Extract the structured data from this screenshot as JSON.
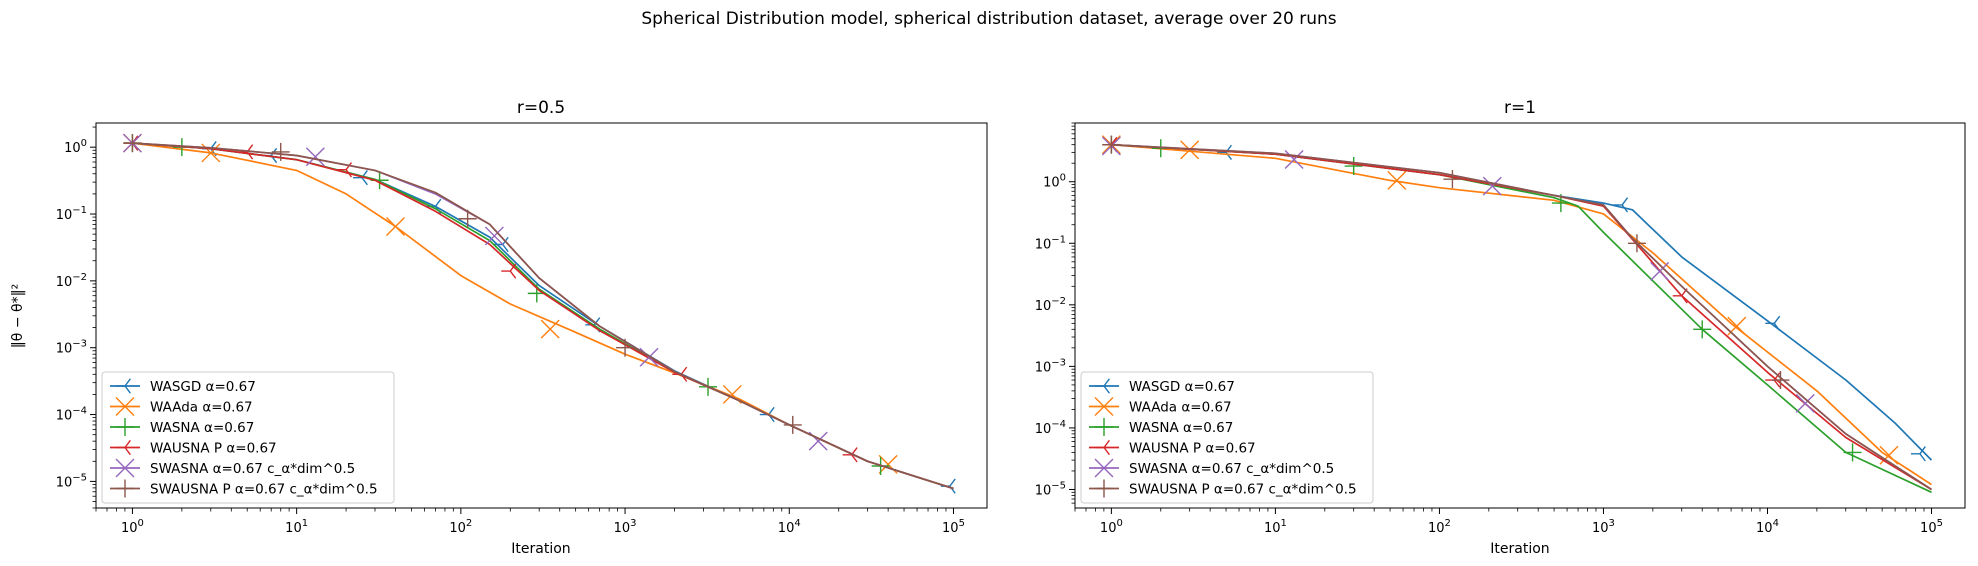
{
  "figure": {
    "suptitle": "Spherical Distribution model, spherical distribution dataset, average over 20 runs"
  },
  "colors": {
    "WASGD": "#1f77b4",
    "WAAda": "#ff7f0e",
    "WASNA": "#2ca02c",
    "WAUSNA": "#d62728",
    "SWASNA": "#9467bd",
    "SWAUSNA": "#8c564b"
  },
  "chart_data": [
    {
      "type": "line",
      "title": "r=0.5",
      "xlabel": "Iteration",
      "ylabel": "‖θ − θ*‖²",
      "xscale": "log",
      "yscale": "log",
      "xlim": [
        0.6,
        160000
      ],
      "ylim": [
        4e-06,
        2.3
      ],
      "xticks": [
        {
          "v": 1,
          "b": "10",
          "e": "0"
        },
        {
          "v": 10,
          "b": "10",
          "e": "1"
        },
        {
          "v": 100,
          "b": "10",
          "e": "2"
        },
        {
          "v": 1000,
          "b": "10",
          "e": "3"
        },
        {
          "v": 10000,
          "b": "10",
          "e": "4"
        },
        {
          "v": 100000,
          "b": "10",
          "e": "5"
        }
      ],
      "yticks": [
        {
          "v": 1e-05,
          "b": "10",
          "e": "−5"
        },
        {
          "v": 0.0001,
          "b": "10",
          "e": "−4"
        },
        {
          "v": 0.001,
          "b": "10",
          "e": "−3"
        },
        {
          "v": 0.01,
          "b": "10",
          "e": "−2"
        },
        {
          "v": 0.1,
          "b": "10",
          "e": "−1"
        },
        {
          "v": 1,
          "b": "10",
          "e": "0"
        }
      ],
      "legend_loc": "lower left",
      "series": [
        {
          "name": "WASGD α=0.67",
          "key": "WASGD",
          "marker": "tri_left",
          "x": [
            1,
            3,
            10,
            30,
            70,
            150,
            300,
            700,
            2000,
            5000,
            10000,
            30000,
            100000
          ],
          "y": [
            1.15,
            0.95,
            0.65,
            0.33,
            0.13,
            0.045,
            0.0085,
            0.0021,
            0.00045,
            0.00016,
            7e-05,
            2e-05,
            7.8e-06
          ],
          "mx": [
            1,
            3,
            7,
            25,
            70,
            180,
            650,
            7500,
            95000
          ],
          "my": [
            1.15,
            0.95,
            0.75,
            0.35,
            0.13,
            0.035,
            0.0022,
            0.0001,
            8.5e-06
          ]
        },
        {
          "name": "WAAda α=0.67",
          "key": "WAAda",
          "marker": "x",
          "x": [
            1,
            3,
            10,
            20,
            40,
            100,
            200,
            500,
            1000,
            2000,
            5000,
            10000,
            30000,
            100000
          ],
          "y": [
            1.15,
            0.82,
            0.45,
            0.2,
            0.065,
            0.012,
            0.0045,
            0.0017,
            0.0008,
            0.00042,
            0.00017,
            7e-05,
            2e-05,
            7.8e-06
          ],
          "mx": [
            1,
            3,
            40,
            350,
            4500,
            40000
          ],
          "my": [
            1.15,
            0.82,
            0.065,
            0.0019,
            0.0002,
            1.8e-05
          ]
        },
        {
          "name": "WASNA α=0.67",
          "key": "WASNA",
          "marker": "plus",
          "x": [
            1,
            3,
            10,
            30,
            70,
            150,
            300,
            700,
            2000,
            5000,
            10000,
            30000,
            100000
          ],
          "y": [
            1.15,
            0.95,
            0.65,
            0.33,
            0.12,
            0.04,
            0.0075,
            0.0019,
            0.00043,
            0.00016,
            7e-05,
            2e-05,
            7.8e-06
          ],
          "mx": [
            1,
            2,
            32,
            290,
            3200,
            36000
          ],
          "my": [
            1.15,
            1.0,
            0.32,
            0.0065,
            0.00026,
            1.7e-05
          ]
        },
        {
          "name": "WAUSNA P α=0.67",
          "key": "WAUSNA",
          "marker": "tri_left",
          "x": [
            1,
            3,
            10,
            30,
            70,
            150,
            300,
            700,
            2000,
            5000,
            10000,
            30000,
            100000
          ],
          "y": [
            1.15,
            0.95,
            0.65,
            0.32,
            0.11,
            0.035,
            0.0072,
            0.0018,
            0.00043,
            0.00016,
            7e-05,
            2e-05,
            7.8e-06
          ],
          "mx": [
            1,
            5,
            20,
            200,
            2200,
            24000
          ],
          "my": [
            1.15,
            0.85,
            0.46,
            0.014,
            0.0004,
            2.5e-05
          ]
        },
        {
          "name": "SWASNA α=0.67 c_α*dim^0.5",
          "key": "SWASNA",
          "marker": "x",
          "x": [
            1,
            3,
            10,
            30,
            70,
            150,
            300,
            700,
            2000,
            5000,
            10000,
            30000,
            100000
          ],
          "y": [
            1.15,
            0.98,
            0.75,
            0.45,
            0.2,
            0.07,
            0.011,
            0.0021,
            0.00044,
            0.00016,
            7e-05,
            2e-05,
            7.8e-06
          ],
          "mx": [
            1,
            13,
            160,
            1400,
            15000
          ],
          "my": [
            1.15,
            0.72,
            0.047,
            0.00072,
            4e-05
          ]
        },
        {
          "name": "SWAUSNA P α=0.67 c_α*dim^0.5",
          "key": "SWAUSNA",
          "marker": "plus",
          "x": [
            1,
            3,
            10,
            30,
            70,
            150,
            300,
            700,
            2000,
            5000,
            10000,
            30000,
            100000
          ],
          "y": [
            1.15,
            0.98,
            0.75,
            0.45,
            0.21,
            0.07,
            0.011,
            0.0021,
            0.00044,
            0.00016,
            7e-05,
            2e-05,
            7.8e-06
          ],
          "mx": [
            1,
            8,
            110,
            1000,
            10500
          ],
          "my": [
            1.15,
            0.85,
            0.085,
            0.001,
            7e-05
          ]
        }
      ]
    },
    {
      "type": "line",
      "title": "r=1",
      "xlabel": "Iteration",
      "ylabel": "",
      "xscale": "log",
      "yscale": "log",
      "xlim": [
        0.6,
        160000
      ],
      "ylim": [
        5e-06,
        9
      ],
      "xticks": [
        {
          "v": 1,
          "b": "10",
          "e": "0"
        },
        {
          "v": 10,
          "b": "10",
          "e": "1"
        },
        {
          "v": 100,
          "b": "10",
          "e": "2"
        },
        {
          "v": 1000,
          "b": "10",
          "e": "3"
        },
        {
          "v": 10000,
          "b": "10",
          "e": "4"
        },
        {
          "v": 100000,
          "b": "10",
          "e": "5"
        }
      ],
      "yticks": [
        {
          "v": 1e-05,
          "b": "10",
          "e": "−5"
        },
        {
          "v": 0.0001,
          "b": "10",
          "e": "−4"
        },
        {
          "v": 0.001,
          "b": "10",
          "e": "−3"
        },
        {
          "v": 0.01,
          "b": "10",
          "e": "−2"
        },
        {
          "v": 0.1,
          "b": "10",
          "e": "−1"
        },
        {
          "v": 1,
          "b": "10",
          "e": "0"
        }
      ],
      "legend_loc": "lower left",
      "series": [
        {
          "name": "WASGD α=0.67",
          "key": "WASGD",
          "marker": "tri_left",
          "x": [
            1,
            10,
            100,
            500,
            1000,
            1500,
            3000,
            10000,
            30000,
            60000,
            100000
          ],
          "y": [
            4.0,
            2.8,
            1.3,
            0.6,
            0.45,
            0.35,
            0.06,
            0.0055,
            0.0006,
            0.00012,
            3e-05
          ],
          "mx": [
            1,
            5,
            1300,
            11000,
            85000
          ],
          "my": [
            4.0,
            3.0,
            0.42,
            0.005,
            3.8e-05
          ]
        },
        {
          "name": "WAAda α=0.67",
          "key": "WAAda",
          "marker": "x",
          "x": [
            1,
            10,
            50,
            100,
            500,
            1000,
            2000,
            6000,
            20000,
            50000,
            100000
          ],
          "y": [
            4.0,
            2.4,
            1.05,
            0.8,
            0.5,
            0.3,
            0.07,
            0.005,
            0.0004,
            4e-05,
            1.2e-05
          ],
          "mx": [
            1,
            3,
            55,
            6500,
            55000
          ],
          "my": [
            4.0,
            3.3,
            1.05,
            0.0045,
            3.6e-05
          ]
        },
        {
          "name": "WASNA α=0.67",
          "key": "WASNA",
          "marker": "plus",
          "x": [
            1,
            10,
            100,
            500,
            700,
            1000,
            4000,
            10000,
            30000,
            100000
          ],
          "y": [
            4.0,
            2.8,
            1.3,
            0.55,
            0.4,
            0.15,
            0.004,
            0.0005,
            4e-05,
            9e-06
          ],
          "mx": [
            1,
            2,
            30,
            550,
            4000,
            33000
          ],
          "my": [
            4.0,
            3.5,
            1.8,
            0.45,
            0.004,
            4e-05
          ]
        },
        {
          "name": "WAUSNA P α=0.67",
          "key": "WAUSNA",
          "marker": "tri_left",
          "x": [
            1,
            10,
            100,
            500,
            1000,
            3000,
            10000,
            30000,
            100000
          ],
          "y": [
            4.0,
            2.8,
            1.3,
            0.6,
            0.4,
            0.014,
            0.0008,
            7e-05,
            1e-05
          ],
          "mx": [
            1,
            3000,
            11000
          ],
          "my": [
            4.0,
            0.014,
            0.0006
          ]
        },
        {
          "name": "SWASNA α=0.67 c_α*dim^0.5",
          "key": "SWASNA",
          "marker": "x",
          "x": [
            1,
            10,
            100,
            500,
            1000,
            1500,
            3000,
            10000,
            30000,
            100000
          ],
          "y": [
            4.0,
            2.9,
            1.4,
            0.6,
            0.42,
            0.12,
            0.02,
            0.001,
            8e-05,
            1e-05
          ],
          "mx": [
            1,
            13,
            210,
            2200,
            17000
          ],
          "my": [
            3.8,
            2.3,
            0.85,
            0.035,
            0.00025
          ]
        },
        {
          "name": "SWAUSNA P α=0.67 c_α*dim^0.5",
          "key": "SWAUSNA",
          "marker": "plus",
          "x": [
            1,
            10,
            100,
            500,
            1000,
            1500,
            3000,
            10000,
            30000,
            100000
          ],
          "y": [
            4.0,
            2.9,
            1.4,
            0.6,
            0.42,
            0.12,
            0.02,
            0.001,
            8e-05,
            1e-05
          ],
          "mx": [
            1,
            120,
            1600,
            12000
          ],
          "my": [
            4.0,
            1.1,
            0.1,
            0.0006
          ]
        }
      ]
    }
  ]
}
